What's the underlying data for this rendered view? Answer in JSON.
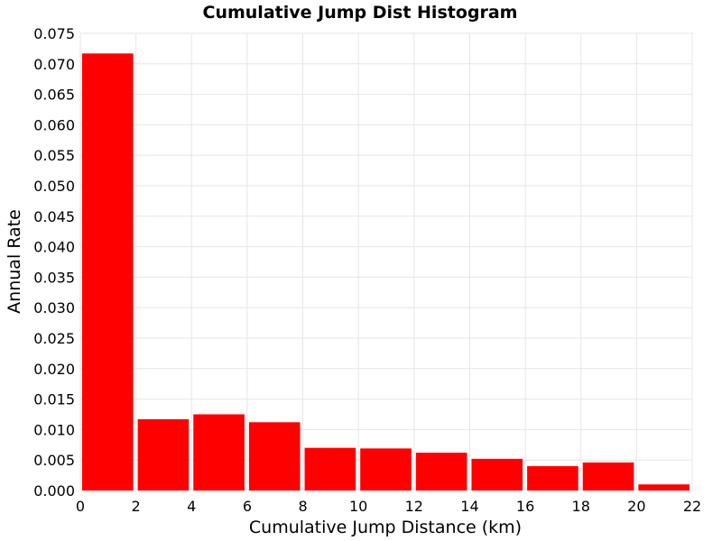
{
  "chart_data": {
    "type": "bar",
    "title": "Cumulative Jump Dist Histogram",
    "xlabel": "Cumulative Jump Distance (km)",
    "ylabel": "Annual Rate",
    "xlim": [
      0,
      22
    ],
    "ylim": [
      0,
      0.075
    ],
    "x_ticks": [
      "0",
      "2",
      "4",
      "6",
      "8",
      "10",
      "12",
      "14",
      "16",
      "18",
      "20",
      "22"
    ],
    "y_ticks": [
      "0.000",
      "0.005",
      "0.010",
      "0.015",
      "0.020",
      "0.025",
      "0.030",
      "0.035",
      "0.040",
      "0.045",
      "0.050",
      "0.055",
      "0.060",
      "0.065",
      "0.070",
      "0.075"
    ],
    "bin_width": 2,
    "bins": [
      {
        "x": 1,
        "value": 0.0717
      },
      {
        "x": 3,
        "value": 0.0117
      },
      {
        "x": 5,
        "value": 0.0125
      },
      {
        "x": 7,
        "value": 0.0112
      },
      {
        "x": 9,
        "value": 0.007
      },
      {
        "x": 11,
        "value": 0.0069
      },
      {
        "x": 13,
        "value": 0.0062
      },
      {
        "x": 15,
        "value": 0.0052
      },
      {
        "x": 17,
        "value": 0.004
      },
      {
        "x": 19,
        "value": 0.0046
      },
      {
        "x": 21,
        "value": 0.001
      }
    ],
    "bar_color": "#ff0000",
    "grid": true,
    "legend": "none"
  }
}
